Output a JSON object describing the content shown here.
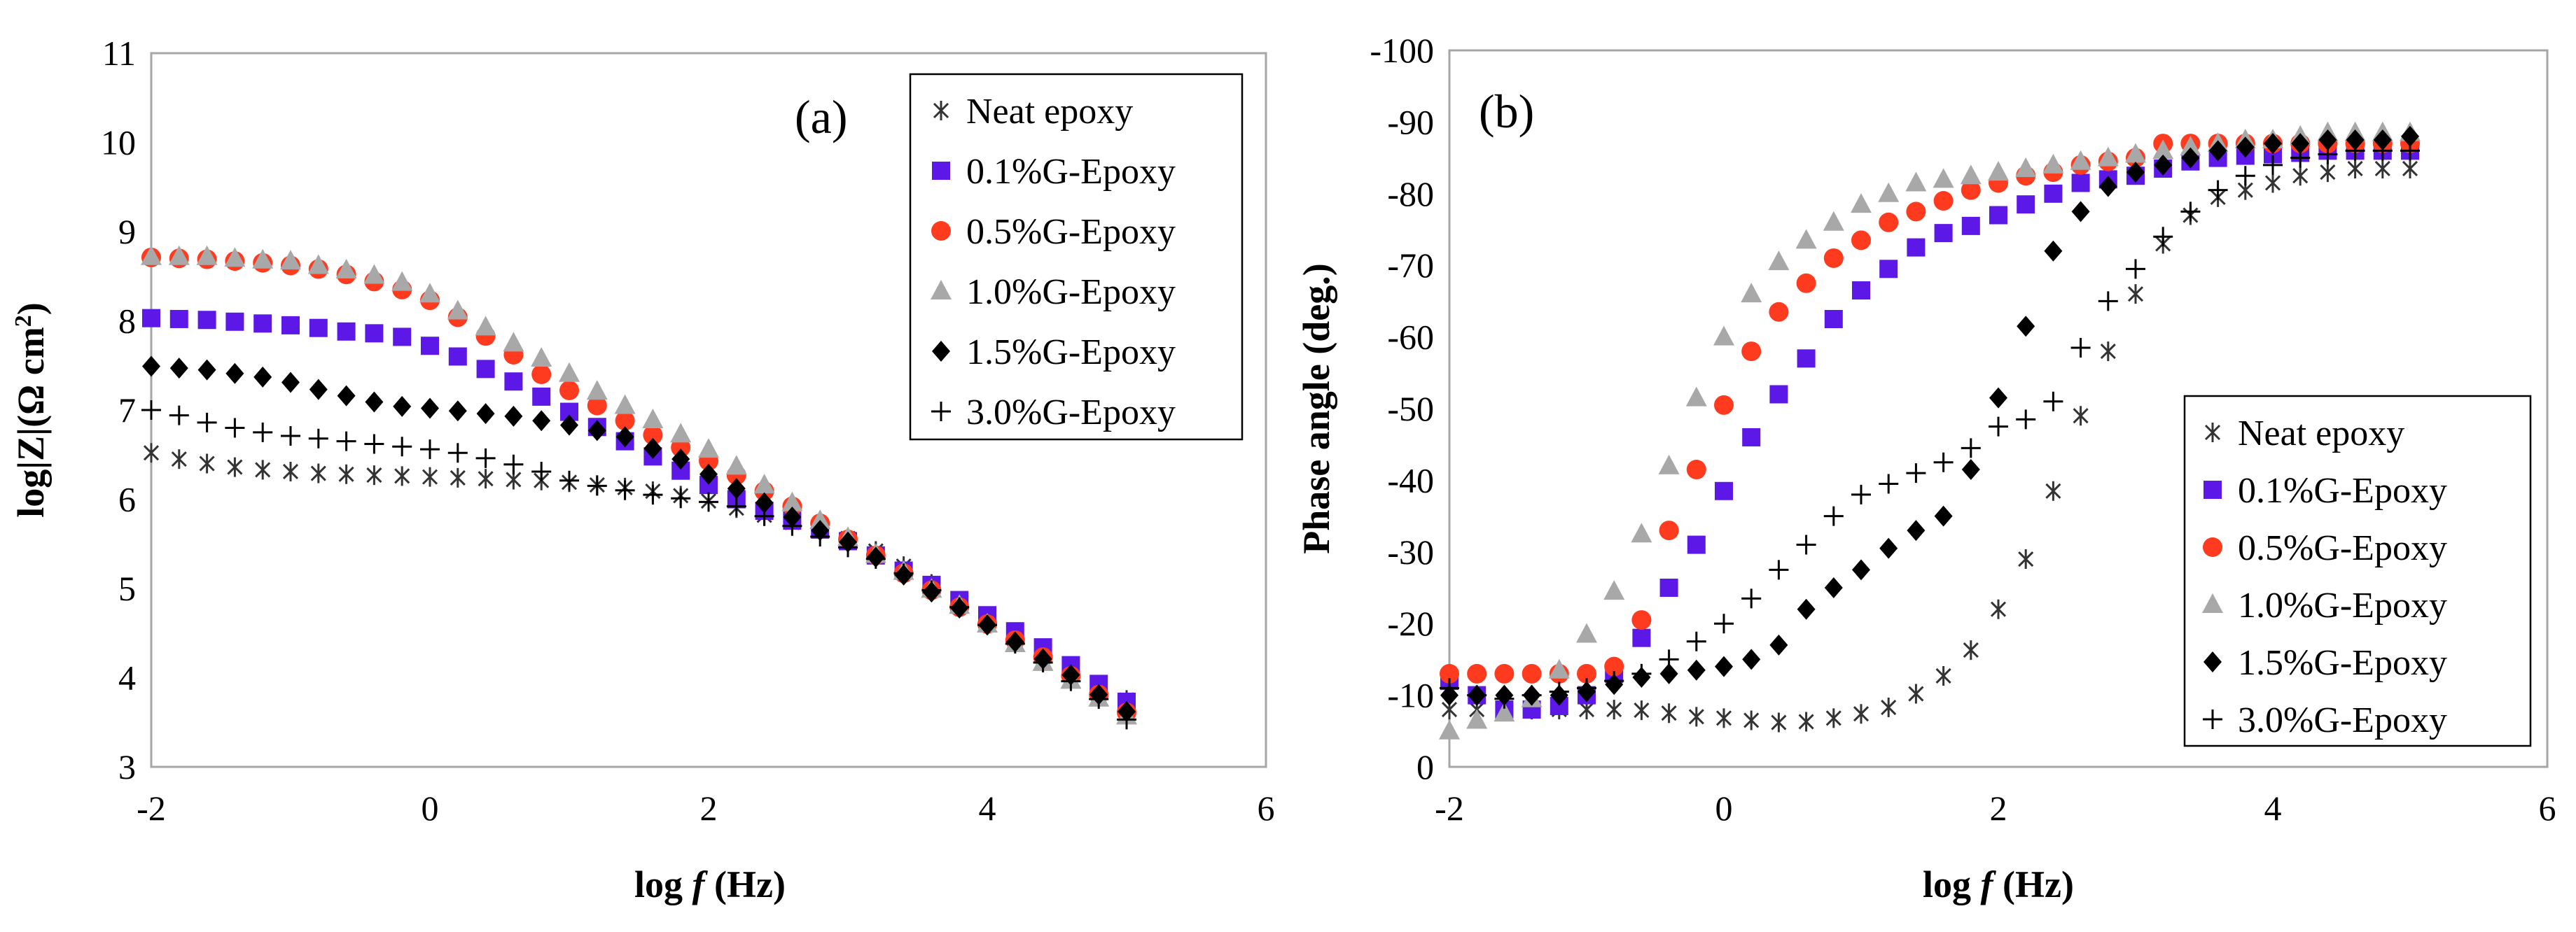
{
  "chart_data": [
    {
      "type": "scatter",
      "panel_label": "(a)",
      "xlabel": "log f (Hz)",
      "xlabel_parts": [
        "log ",
        "f",
        " (Hz)"
      ],
      "ylabel": "log|Z|(Ω cm²)",
      "ylabel_parts": [
        "log|Z|(Ω cm",
        "2",
        ")"
      ],
      "xlim": [
        -2,
        6
      ],
      "ylim": [
        3,
        11
      ],
      "xticks": [
        -2,
        0,
        2,
        4,
        6
      ],
      "yticks": [
        3,
        4,
        5,
        6,
        7,
        8,
        9,
        10,
        11
      ],
      "legend_position": "top-right",
      "x": [
        -2.0,
        -1.8,
        -1.6,
        -1.4,
        -1.2,
        -1.0,
        -0.8,
        -0.6,
        -0.4,
        -0.2,
        0.0,
        0.2,
        0.4,
        0.6,
        0.8,
        1.0,
        1.2,
        1.4,
        1.6,
        1.8,
        2.0,
        2.2,
        2.4,
        2.6,
        2.8,
        3.0,
        3.2,
        3.4,
        3.6,
        3.8,
        4.0,
        4.2,
        4.4,
        4.6,
        4.8,
        5.0
      ],
      "series": [
        {
          "name": "Neat epoxy",
          "marker": "asterisk",
          "color": "#333333",
          "values": [
            6.52,
            6.45,
            6.4,
            6.36,
            6.33,
            6.31,
            6.29,
            6.28,
            6.27,
            6.26,
            6.25,
            6.24,
            6.23,
            6.22,
            6.21,
            6.19,
            6.16,
            6.13,
            6.09,
            6.04,
            5.98,
            5.9,
            5.82,
            5.74,
            5.65,
            5.56,
            5.42,
            5.25,
            5.05,
            4.86,
            4.66,
            4.46,
            4.27,
            4.08,
            3.9,
            3.75
          ]
        },
        {
          "name": "0.1%G-Epoxy",
          "marker": "square",
          "color": "#5b18e6",
          "values": [
            8.03,
            8.02,
            8.01,
            7.99,
            7.97,
            7.95,
            7.92,
            7.88,
            7.86,
            7.82,
            7.72,
            7.6,
            7.46,
            7.32,
            7.15,
            6.98,
            6.81,
            6.65,
            6.48,
            6.32,
            6.16,
            6.0,
            5.87,
            5.76,
            5.66,
            5.53,
            5.37,
            5.2,
            5.04,
            4.87,
            4.7,
            4.52,
            4.34,
            4.14,
            3.93,
            3.73
          ]
        },
        {
          "name": "0.5%G-Epoxy",
          "marker": "circle",
          "color": "#ff3b1f",
          "values": [
            8.71,
            8.7,
            8.69,
            8.67,
            8.65,
            8.62,
            8.58,
            8.52,
            8.44,
            8.35,
            8.23,
            8.04,
            7.83,
            7.62,
            7.4,
            7.22,
            7.05,
            6.88,
            6.72,
            6.58,
            6.43,
            6.27,
            6.09,
            5.92,
            5.73,
            5.55,
            5.37,
            5.17,
            4.98,
            4.79,
            4.6,
            4.42,
            4.23,
            4.02,
            3.81,
            3.61
          ]
        },
        {
          "name": "1.0%G-Epoxy",
          "marker": "triangle",
          "color": "#a8a8a8",
          "values": [
            8.72,
            8.72,
            8.72,
            8.7,
            8.68,
            8.67,
            8.62,
            8.57,
            8.51,
            8.43,
            8.3,
            8.11,
            7.93,
            7.75,
            7.58,
            7.41,
            7.21,
            7.05,
            6.89,
            6.73,
            6.56,
            6.37,
            6.16,
            5.96,
            5.76,
            5.57,
            5.38,
            5.19,
            4.99,
            4.81,
            4.6,
            4.38,
            4.17,
            3.97,
            3.77,
            3.57
          ]
        },
        {
          "name": "1.5%G-Epoxy",
          "marker": "diamond",
          "color": "#000000",
          "values": [
            7.49,
            7.47,
            7.45,
            7.41,
            7.37,
            7.31,
            7.23,
            7.16,
            7.09,
            7.04,
            7.02,
            6.99,
            6.96,
            6.93,
            6.88,
            6.83,
            6.77,
            6.7,
            6.57,
            6.45,
            6.28,
            6.12,
            5.96,
            5.8,
            5.65,
            5.52,
            5.35,
            5.15,
            4.96,
            4.78,
            4.59,
            4.4,
            4.21,
            4.03,
            3.81,
            3.62
          ]
        },
        {
          "name": "3.0%G-Epoxy",
          "marker": "plus",
          "color": "#000000",
          "values": [
            7.0,
            6.94,
            6.86,
            6.8,
            6.75,
            6.71,
            6.68,
            6.65,
            6.62,
            6.59,
            6.56,
            6.52,
            6.46,
            6.39,
            6.31,
            6.21,
            6.15,
            6.1,
            6.05,
            6.01,
            5.97,
            5.92,
            5.81,
            5.7,
            5.58,
            5.46,
            5.33,
            5.17,
            4.98,
            4.79,
            4.59,
            4.38,
            4.17,
            3.96,
            3.76,
            3.53
          ]
        }
      ]
    },
    {
      "type": "scatter",
      "panel_label": "(b)",
      "xlabel": "log f (Hz)",
      "xlabel_parts": [
        "log ",
        "f",
        " (Hz)"
      ],
      "ylabel": "Phase angle (deg.)",
      "xlim": [
        -2,
        6
      ],
      "ylim": [
        0,
        -100
      ],
      "xticks": [
        -2,
        0,
        2,
        4,
        6
      ],
      "yticks": [
        0,
        -10,
        -20,
        -30,
        -40,
        -50,
        -60,
        -70,
        -80,
        -90,
        -100
      ],
      "legend_position": "bottom-right",
      "x": [
        -2.0,
        -1.8,
        -1.6,
        -1.4,
        -1.2,
        -1.0,
        -0.8,
        -0.6,
        -0.4,
        -0.2,
        0.0,
        0.2,
        0.4,
        0.6,
        0.8,
        1.0,
        1.2,
        1.4,
        1.6,
        1.8,
        2.0,
        2.2,
        2.4,
        2.6,
        2.8,
        3.0,
        3.2,
        3.4,
        3.6,
        3.8,
        4.0,
        4.2,
        4.4,
        4.6,
        4.8,
        5.0
      ],
      "series": [
        {
          "name": "Neat epoxy",
          "marker": "asterisk",
          "color": "#333333",
          "values": [
            -8.0,
            -8.0,
            -8.0,
            -8.0,
            -8.0,
            -8.0,
            -8.0,
            -7.9,
            -7.5,
            -7.0,
            -6.8,
            -6.5,
            -6.2,
            -6.3,
            -6.8,
            -7.4,
            -8.3,
            -10.2,
            -12.7,
            -16.3,
            -22.0,
            -29.0,
            -38.5,
            -49.0,
            -58.0,
            -66.0,
            -73.0,
            -77.0,
            -79.5,
            -80.5,
            -81.5,
            -82.5,
            -83.0,
            -83.5,
            -83.5,
            -83.5
          ]
        },
        {
          "name": "0.1%G-Epoxy",
          "marker": "square",
          "color": "#5b18e6",
          "values": [
            -12.0,
            -10.0,
            -8.0,
            -8.0,
            -8.5,
            -10.0,
            -13.0,
            -18.0,
            -25.0,
            -31.0,
            -38.5,
            -46.0,
            -52.0,
            -57.0,
            -62.5,
            -66.5,
            -69.5,
            -72.5,
            -74.5,
            -75.5,
            -77.0,
            -78.5,
            -80.0,
            -81.5,
            -82.0,
            -82.5,
            -83.5,
            -84.5,
            -85.0,
            -85.3,
            -85.5,
            -85.7,
            -86.0,
            -86.0,
            -86.0,
            -86.0
          ]
        },
        {
          "name": "0.5%G-Epoxy",
          "marker": "circle",
          "color": "#ff3b1f",
          "values": [
            -13.0,
            -13.0,
            -13.0,
            -13.0,
            -13.0,
            -13.0,
            -14.0,
            -20.5,
            -33.0,
            -41.5,
            -50.5,
            -58.0,
            -63.5,
            -67.5,
            -71.0,
            -73.5,
            -76.0,
            -77.5,
            -79.0,
            -80.5,
            -81.5,
            -82.5,
            -83.0,
            -84.0,
            -84.5,
            -85.0,
            -87.0,
            -87.0,
            -87.0,
            -87.0,
            -87.0,
            -87.0,
            -87.0,
            -87.0,
            -87.0,
            -87.0
          ]
        },
        {
          "name": "1.0%G-Epoxy",
          "marker": "triangle",
          "color": "#a8a8a8",
          "values": [
            -5.0,
            -6.5,
            -7.5,
            -9.5,
            -13.5,
            -18.5,
            -24.5,
            -32.5,
            -42.0,
            -51.5,
            -60.0,
            -66.0,
            -70.5,
            -73.5,
            -76.0,
            -78.5,
            -80.0,
            -81.5,
            -82.0,
            -82.5,
            -83.0,
            -83.5,
            -84.0,
            -84.5,
            -85.0,
            -85.5,
            -86.0,
            -86.5,
            -87.0,
            -87.5,
            -87.5,
            -88.0,
            -88.5,
            -88.5,
            -88.5,
            -88.5
          ]
        },
        {
          "name": "1.5%G-Epoxy",
          "marker": "diamond",
          "color": "#000000",
          "values": [
            -10.0,
            -10.0,
            -10.0,
            -10.0,
            -10.0,
            -10.5,
            -11.5,
            -12.5,
            -13.0,
            -13.5,
            -14.0,
            -15.0,
            -17.0,
            -22.0,
            -25.0,
            -27.5,
            -30.5,
            -33.0,
            -35.0,
            -41.5,
            -51.5,
            -61.5,
            -72.0,
            -77.5,
            -81.0,
            -83.0,
            -84.0,
            -85.0,
            -86.0,
            -86.5,
            -87.0,
            -87.0,
            -87.5,
            -87.5,
            -87.5,
            -88.0
          ]
        },
        {
          "name": "3.0%G-Epoxy",
          "marker": "plus",
          "color": "#000000",
          "values": [
            -11.0,
            -10.0,
            -9.5,
            -10.0,
            -10.5,
            -11.0,
            -12.0,
            -13.0,
            -15.0,
            -17.5,
            -20.0,
            -23.5,
            -27.5,
            -31.0,
            -35.0,
            -38.0,
            -39.5,
            -41.0,
            -42.5,
            -44.5,
            -47.5,
            -48.5,
            -51.0,
            -58.5,
            -65.0,
            -69.5,
            -74.0,
            -77.5,
            -80.5,
            -82.5,
            -84.0,
            -85.0,
            -85.5,
            -86.0,
            -86.0,
            -86.0
          ]
        }
      ]
    }
  ]
}
